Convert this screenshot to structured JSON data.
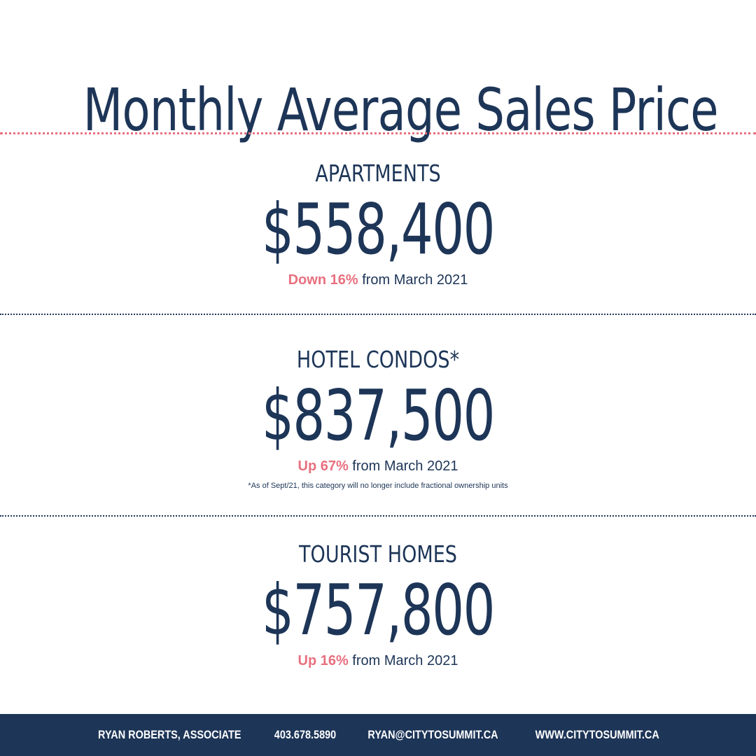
{
  "title": "Monthly Average Sales Price",
  "colors": {
    "navy": "#1d3557",
    "pink": "#e8707f",
    "background": "#ffffff"
  },
  "sections": [
    {
      "category": "APARTMENTS",
      "price": "$558,400",
      "change_highlight": "Down 16%",
      "change_rest": " from March 2021"
    },
    {
      "category": "HOTEL CONDOS*",
      "price": "$837,500",
      "change_highlight": "Up 67%",
      "change_rest": " from March 2021",
      "footnote": "*As of Sept/21, this category will no longer include fractional ownership units"
    },
    {
      "category": "TOURIST HOMES",
      "price": "$757,800",
      "change_highlight": "Up 16%",
      "change_rest": " from March 2021"
    }
  ],
  "footer": {
    "name": "RYAN ROBERTS, ASSOCIATE",
    "phone": "403.678.5890",
    "email": "RYAN@CITYTOSUMMIT.CA",
    "website": "WWW.CITYTOSUMMIT.CA"
  }
}
